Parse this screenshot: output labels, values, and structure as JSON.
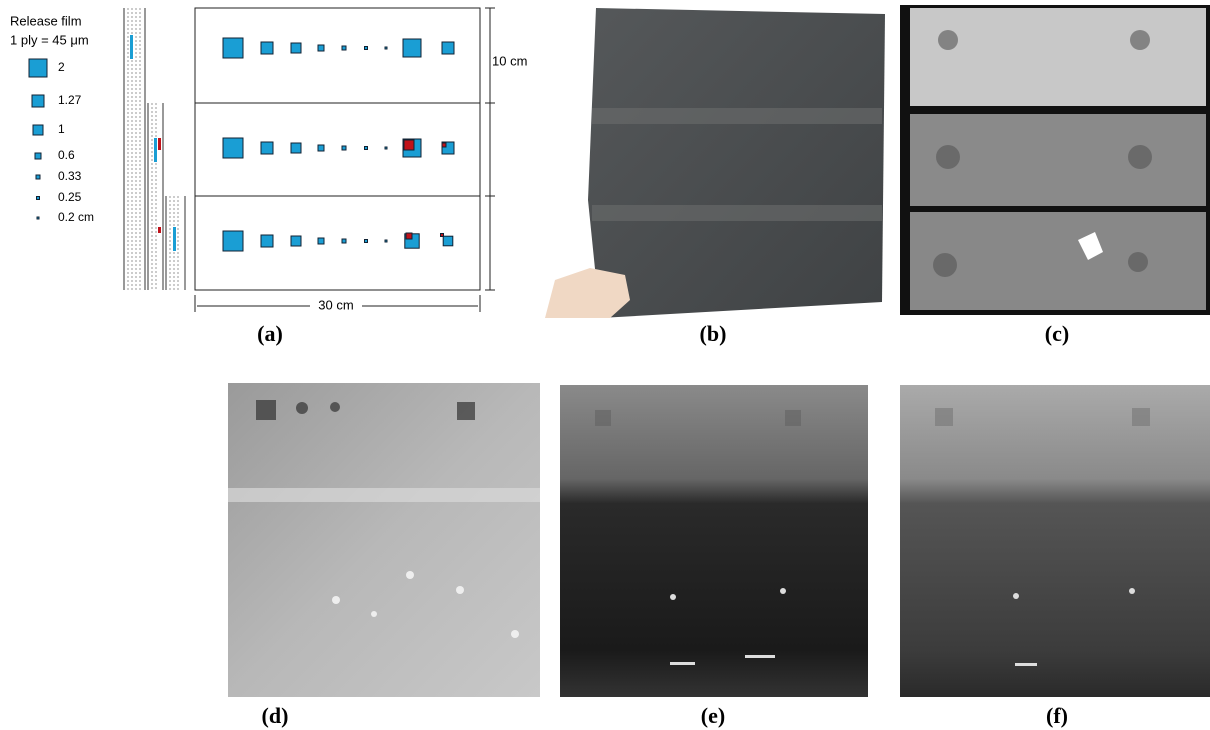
{
  "panel_a": {
    "legend_title": [
      "Release film",
      "1 ply = 45 μm"
    ],
    "sizes": [
      "2",
      "1.27",
      "1",
      "0.6",
      "0.33",
      "0.25",
      "0.2 cm"
    ],
    "height_label": "10 cm",
    "width_label": "30 cm"
  },
  "panel_labels": [
    "(a)",
    "(b)",
    "(c)",
    "(d)",
    "(e)",
    "(f)"
  ]
}
